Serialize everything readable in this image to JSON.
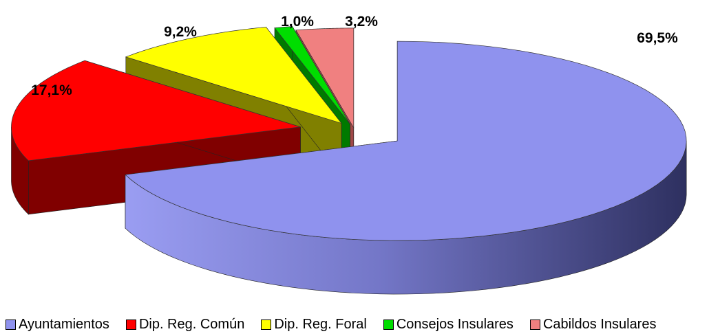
{
  "chart_data": {
    "type": "pie",
    "style": "3d-exploded",
    "title": "",
    "categories": [
      "Ayuntamientos",
      "Dip. Reg. Común",
      "Dip. Reg. Foral",
      "Consejos Insulares",
      "Cabildos Insulares"
    ],
    "values": [
      69.5,
      17.1,
      9.2,
      1.0,
      3.2
    ],
    "data_labels": [
      "69,5%",
      "17,1%",
      "9,2%",
      "1,0%",
      "3,2%"
    ],
    "colors": [
      "#8F92EE",
      "#FF0000",
      "#FFFF00",
      "#00DD00",
      "#F08080"
    ],
    "side_colors": [
      "#5A5DA8",
      "#800000",
      "#808000",
      "#007A00",
      "#A04848"
    ],
    "legend_position": "bottom"
  }
}
